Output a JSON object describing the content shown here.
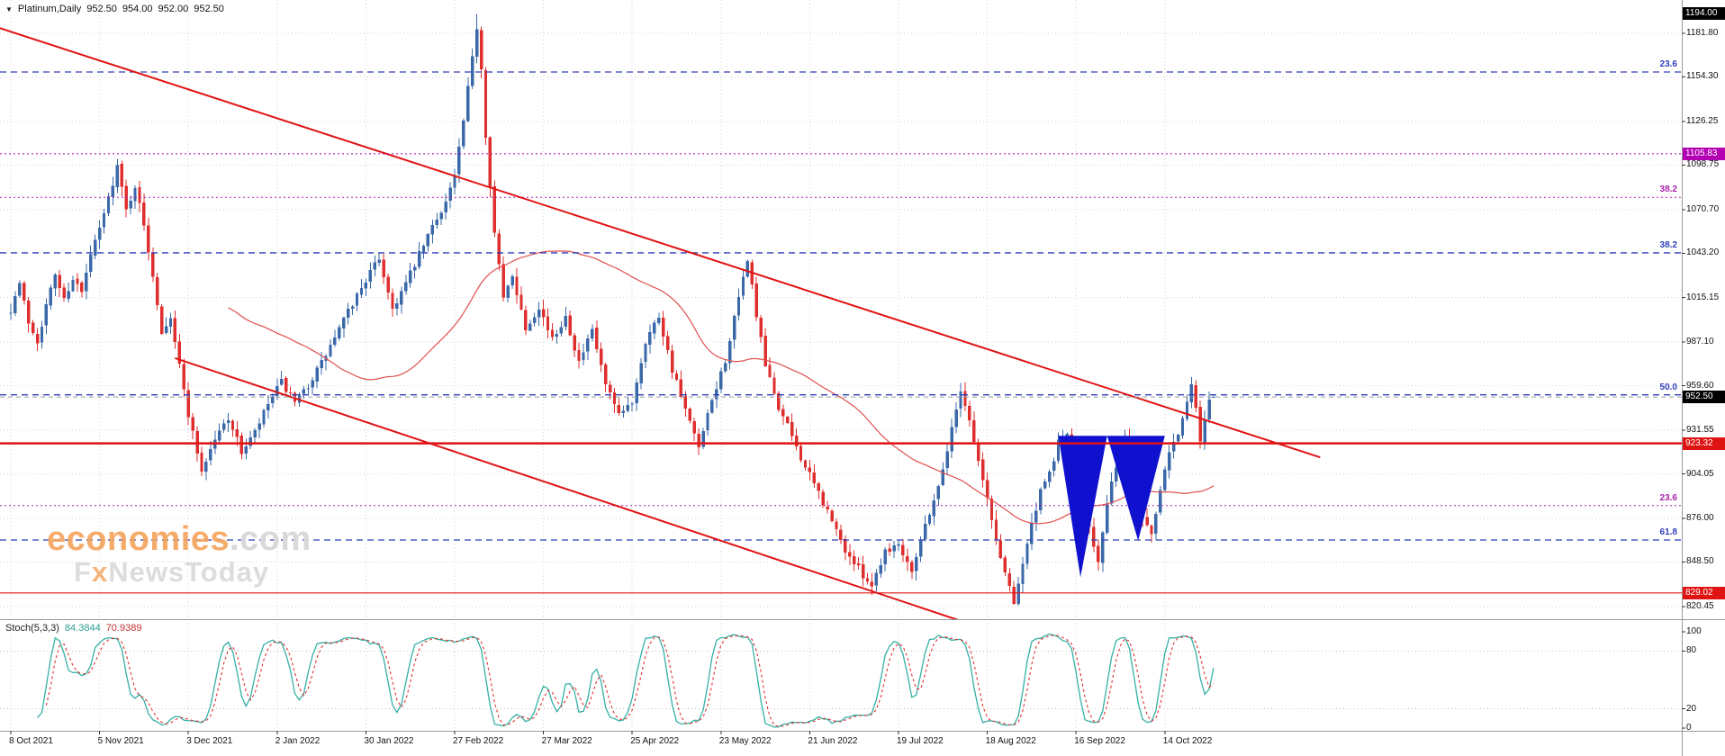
{
  "header": {
    "marker_icon": "▼",
    "symbol_period": "Platinum,Daily",
    "open": "952.50",
    "high": "954.00",
    "low": "952.00",
    "close": "952.50"
  },
  "watermark": {
    "brand": "economies",
    "brand_suffix": ".com",
    "sub_f": "F",
    "sub_x": "x",
    "sub_rest": "NewsToday"
  },
  "stoch": {
    "label": "Stoch(5,3,3)",
    "k_value": "84.3844",
    "d_value": "70.9389"
  },
  "axes": {
    "price_ticks": [
      "1181.80",
      "1154.30",
      "1126.25",
      "1098.75",
      "1070.70",
      "1043.20",
      "1015.15",
      "987.10",
      "959.60",
      "931.55",
      "904.05",
      "876.00",
      "848.50",
      "820.45"
    ],
    "date_ticks": [
      "8 Oct 2021",
      "5 Nov 2021",
      "3 Dec 2021",
      "2 Jan 2022",
      "30 Jan 2022",
      "27 Feb 2022",
      "27 Mar 2022",
      "25 Apr 2022",
      "23 May 2022",
      "21 Jun 2022",
      "19 Jul 2022",
      "18 Aug 2022",
      "16 Sep 2022",
      "14 Oct 2022"
    ],
    "stoch_ticks": [
      "100",
      "80",
      "20",
      "0"
    ]
  },
  "badges": [
    {
      "text": "1194.00",
      "price": 1194.0,
      "bg": "#000000"
    },
    {
      "text": "1105.83",
      "price": 1105.83,
      "bg": "#b300b3"
    },
    {
      "text": "952.50",
      "price": 952.5,
      "bg": "#000000"
    },
    {
      "text": "923.32",
      "price": 923.32,
      "bg": "#e01313"
    },
    {
      "text": "829.02",
      "price": 829.02,
      "bg": "#e01313"
    }
  ],
  "chart_data": {
    "type": "candlestick",
    "instrument": "Platinum",
    "timeframe": "Daily",
    "title": "Platinum,Daily",
    "last_ohlc": {
      "open": 952.5,
      "high": 954.0,
      "low": 952.0,
      "close": 952.5
    },
    "visible_price_range": [
      812,
      1203
    ],
    "bars_total": 272,
    "bars_per_date_tick": 20,
    "x_dates": [
      "8 Oct 2021",
      "5 Nov 2021",
      "3 Dec 2021",
      "2 Jan 2022",
      "30 Jan 2022",
      "27 Feb 2022",
      "27 Mar 2022",
      "25 Apr 2022",
      "23 May 2022",
      "21 Jun 2022",
      "19 Jul 2022",
      "18 Aug 2022",
      "16 Sep 2022",
      "14 Oct 2022"
    ],
    "period_high": 1194.0,
    "period_low": 820.45,
    "price_path_anchors": [
      [
        0,
        1008
      ],
      [
        2,
        1024
      ],
      [
        4,
        1000
      ],
      [
        6,
        988
      ],
      [
        8,
        1010
      ],
      [
        10,
        1030
      ],
      [
        12,
        1014
      ],
      [
        14,
        1028
      ],
      [
        16,
        1018
      ],
      [
        18,
        1042
      ],
      [
        20,
        1058
      ],
      [
        22,
        1078
      ],
      [
        24,
        1098
      ],
      [
        26,
        1070
      ],
      [
        28,
        1086
      ],
      [
        30,
        1060
      ],
      [
        32,
        1030
      ],
      [
        34,
        994
      ],
      [
        36,
        1004
      ],
      [
        38,
        972
      ],
      [
        40,
        942
      ],
      [
        43,
        906
      ],
      [
        46,
        926
      ],
      [
        49,
        940
      ],
      [
        52,
        918
      ],
      [
        55,
        930
      ],
      [
        58,
        948
      ],
      [
        61,
        962
      ],
      [
        64,
        948
      ],
      [
        67,
        960
      ],
      [
        70,
        974
      ],
      [
        73,
        990
      ],
      [
        76,
        1006
      ],
      [
        79,
        1022
      ],
      [
        83,
        1040
      ],
      [
        86,
        1008
      ],
      [
        89,
        1024
      ],
      [
        92,
        1042
      ],
      [
        95,
        1060
      ],
      [
        98,
        1076
      ],
      [
        100,
        1092
      ],
      [
        102,
        1126
      ],
      [
        104,
        1166
      ],
      [
        105,
        1186
      ],
      [
        106,
        1160
      ],
      [
        107,
        1118
      ],
      [
        109,
        1056
      ],
      [
        111,
        1014
      ],
      [
        113,
        1030
      ],
      [
        116,
        996
      ],
      [
        119,
        1010
      ],
      [
        122,
        988
      ],
      [
        125,
        1004
      ],
      [
        128,
        974
      ],
      [
        131,
        994
      ],
      [
        134,
        960
      ],
      [
        137,
        940
      ],
      [
        140,
        950
      ],
      [
        143,
        988
      ],
      [
        146,
        1004
      ],
      [
        149,
        970
      ],
      [
        152,
        944
      ],
      [
        155,
        920
      ],
      [
        158,
        950
      ],
      [
        161,
        976
      ],
      [
        164,
        1014
      ],
      [
        166,
        1040
      ],
      [
        168,
        1004
      ],
      [
        170,
        972
      ],
      [
        173,
        946
      ],
      [
        176,
        928
      ],
      [
        179,
        908
      ],
      [
        182,
        892
      ],
      [
        185,
        874
      ],
      [
        188,
        856
      ],
      [
        191,
        844
      ],
      [
        194,
        834
      ],
      [
        197,
        856
      ],
      [
        200,
        860
      ],
      [
        203,
        844
      ],
      [
        206,
        872
      ],
      [
        209,
        896
      ],
      [
        212,
        932
      ],
      [
        214,
        958
      ],
      [
        216,
        938
      ],
      [
        218,
        912
      ],
      [
        220,
        888
      ],
      [
        222,
        862
      ],
      [
        224,
        842
      ],
      [
        226,
        824
      ],
      [
        228,
        848
      ],
      [
        230,
        872
      ],
      [
        232,
        892
      ],
      [
        234,
        904
      ],
      [
        236,
        924
      ],
      [
        238,
        930
      ],
      [
        240,
        912
      ],
      [
        242,
        884
      ],
      [
        244,
        860
      ],
      [
        245,
        848
      ],
      [
        247,
        884
      ],
      [
        249,
        910
      ],
      [
        251,
        926
      ],
      [
        253,
        902
      ],
      [
        255,
        878
      ],
      [
        257,
        866
      ],
      [
        259,
        896
      ],
      [
        261,
        920
      ],
      [
        263,
        930
      ],
      [
        265,
        948
      ],
      [
        266,
        960
      ],
      [
        267,
        944
      ],
      [
        268,
        926
      ],
      [
        269,
        938
      ],
      [
        270,
        952
      ],
      [
        271,
        952.5
      ]
    ],
    "moving_average": {
      "type": "SMA",
      "period": 50,
      "color": "#e14f4f"
    },
    "fib_levels_blue": [
      {
        "label": "23.6",
        "price": 1157.4
      },
      {
        "label": "38.2",
        "price": 1043.4
      },
      {
        "label": "50.0",
        "price": 953.9
      },
      {
        "label": "61.8",
        "price": 862.4
      }
    ],
    "fib_levels_purple": [
      {
        "label": "38.2",
        "price": 1078.4
      },
      {
        "label": "23.6",
        "price": 884.1
      }
    ],
    "horizontal_lines": [
      {
        "price": 1105.83,
        "color": "#b300b3",
        "style": "dotted",
        "width": 1
      },
      {
        "price": 952.5,
        "color": "#9a9a9a",
        "style": "dashed",
        "width": 1
      },
      {
        "price": 923.32,
        "color": "#e01313",
        "style": "solid",
        "width": 2.5
      },
      {
        "price": 829.02,
        "color": "#e01313",
        "style": "solid",
        "width": 1.2
      }
    ],
    "trendlines": [
      {
        "from": [
          -3.5,
          1186
        ],
        "to": [
          295,
          914.5
        ],
        "color": "#e01313",
        "width": 2
      },
      {
        "from": [
          37,
          977
        ],
        "to": [
          215.5,
          810
        ],
        "color": "#e01313",
        "width": 2
      }
    ],
    "pattern_triangles": [
      {
        "points": [
          [
            236,
            928
          ],
          [
            247,
            928
          ],
          [
            241,
            839
          ]
        ],
        "color": "#1010cf"
      },
      {
        "points": [
          [
            247,
            928
          ],
          [
            260,
            928
          ],
          [
            254,
            862
          ]
        ],
        "color": "#1010cf"
      }
    ],
    "stochastic": {
      "name": "Stoch(5,3,3)",
      "k_period": 5,
      "d_period": 3,
      "slowing": 3,
      "levels": [
        80,
        20
      ],
      "range": [
        0,
        100
      ],
      "k_color": "#35b0a5",
      "d_color": "#e03030",
      "last_k": 84.3844,
      "last_d": 70.9389
    }
  },
  "colors": {
    "bull": "#3a68a8",
    "bear": "#df2e2e",
    "grid": "#d6d6d6",
    "fib_blue": "#2f3fbb",
    "fib_purple": "#aa22aa",
    "frame": "#9a9a9a",
    "background": "#ffffff"
  }
}
